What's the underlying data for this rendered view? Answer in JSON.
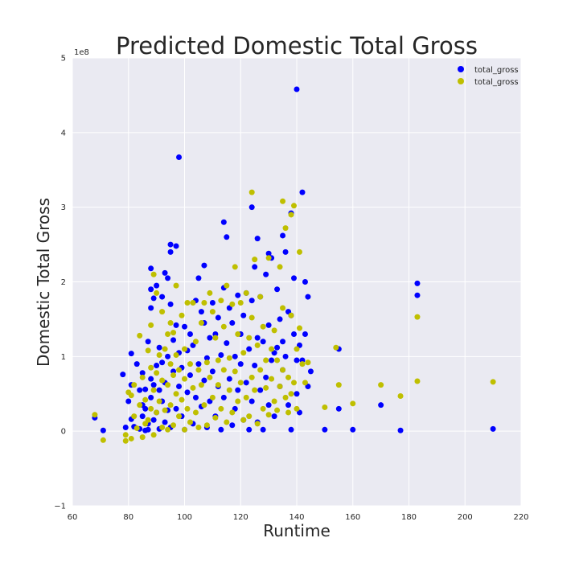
{
  "chart_data": {
    "type": "scatter",
    "title": "Predicted Domestic Total Gross",
    "xlabel": "Runtime",
    "ylabel": "Domestic Total Gross",
    "xlim": [
      60,
      220
    ],
    "ylim": [
      -1,
      5
    ],
    "y_scale_label": "1e8",
    "y_multiplier": 100000000,
    "x_ticks": [
      60,
      80,
      100,
      120,
      140,
      160,
      180,
      200,
      220
    ],
    "y_ticks": [
      -1,
      0,
      1,
      2,
      3,
      4,
      5
    ],
    "x_tick_labels": [
      "60",
      "80",
      "100",
      "120",
      "140",
      "160",
      "180",
      "200",
      "220"
    ],
    "y_tick_labels": [
      "−1",
      "0",
      "1",
      "2",
      "3",
      "4",
      "5"
    ],
    "grid": true,
    "background": "#eaeaf2",
    "legend_position": "top-right",
    "series": [
      {
        "name": "total_gross",
        "color": "#0000ff",
        "points": [
          [
            68,
            0.18
          ],
          [
            71,
            0.01
          ],
          [
            78,
            0.76
          ],
          [
            79,
            0.05
          ],
          [
            80,
            0.4
          ],
          [
            81,
            0.62
          ],
          [
            81,
            1.04
          ],
          [
            81,
            0.16
          ],
          [
            82,
            0.06
          ],
          [
            83,
            0.9
          ],
          [
            84,
            0.03
          ],
          [
            84,
            0.55
          ],
          [
            85,
            0.35
          ],
          [
            85,
            0.78
          ],
          [
            85,
            0.2
          ],
          [
            86,
            0.01
          ],
          [
            86,
            0.56
          ],
          [
            86,
            0.3
          ],
          [
            87,
            0.1
          ],
          [
            87,
            1.2
          ],
          [
            87,
            0.02
          ],
          [
            88,
            0.7
          ],
          [
            88,
            1.9
          ],
          [
            88,
            1.65
          ],
          [
            88,
            2.18
          ],
          [
            88,
            0.45
          ],
          [
            89,
            0.15
          ],
          [
            89,
            1.78
          ],
          [
            89,
            0.62
          ],
          [
            90,
            1.95
          ],
          [
            90,
            0.88
          ],
          [
            90,
            0.25
          ],
          [
            91,
            0.03
          ],
          [
            91,
            1.12
          ],
          [
            91,
            0.55
          ],
          [
            92,
            1.8
          ],
          [
            92,
            0.4
          ],
          [
            92,
            0.92
          ],
          [
            93,
            0.12
          ],
          [
            93,
            2.12
          ],
          [
            93,
            0.65
          ],
          [
            94,
            2.05
          ],
          [
            94,
            1.0
          ],
          [
            94,
            0.28
          ],
          [
            95,
            2.5
          ],
          [
            95,
            2.4
          ],
          [
            95,
            1.7
          ],
          [
            95,
            0.05
          ],
          [
            96,
            1.22
          ],
          [
            96,
            0.8
          ],
          [
            97,
            2.48
          ],
          [
            97,
            0.3
          ],
          [
            97,
            1.42
          ],
          [
            98,
            3.67
          ],
          [
            98,
            1.05
          ],
          [
            98,
            0.6
          ],
          [
            99,
            0.2
          ],
          [
            99,
            0.85
          ],
          [
            100,
            1.4
          ],
          [
            100,
            0.02
          ],
          [
            101,
            1.08
          ],
          [
            101,
            0.52
          ],
          [
            102,
            0.75
          ],
          [
            102,
            1.3
          ],
          [
            103,
            0.1
          ],
          [
            103,
            1.15
          ],
          [
            104,
            1.75
          ],
          [
            104,
            0.45
          ],
          [
            105,
            2.05
          ],
          [
            105,
            0.9
          ],
          [
            106,
            0.33
          ],
          [
            106,
            1.6
          ],
          [
            107,
            2.22
          ],
          [
            107,
            1.45
          ],
          [
            107,
            0.68
          ],
          [
            108,
            0.05
          ],
          [
            108,
            0.98
          ],
          [
            109,
            1.25
          ],
          [
            109,
            0.4
          ],
          [
            110,
            1.72
          ],
          [
            110,
            0.8
          ],
          [
            111,
            1.3
          ],
          [
            111,
            0.2
          ],
          [
            112,
            1.52
          ],
          [
            112,
            0.6
          ],
          [
            113,
            0.02
          ],
          [
            113,
            1.02
          ],
          [
            114,
            2.8
          ],
          [
            114,
            1.92
          ],
          [
            114,
            0.45
          ],
          [
            115,
            2.6
          ],
          [
            115,
            1.18
          ],
          [
            116,
            1.65
          ],
          [
            116,
            0.7
          ],
          [
            117,
            0.08
          ],
          [
            117,
            1.45
          ],
          [
            118,
            1.0
          ],
          [
            118,
            0.3
          ],
          [
            119,
            1.82
          ],
          [
            119,
            0.55
          ],
          [
            120,
            1.3
          ],
          [
            120,
            0.9
          ],
          [
            121,
            0.15
          ],
          [
            121,
            1.55
          ],
          [
            122,
            1.85
          ],
          [
            122,
            0.65
          ],
          [
            123,
            0.02
          ],
          [
            123,
            1.1
          ],
          [
            124,
            3.0
          ],
          [
            124,
            1.75
          ],
          [
            124,
            0.4
          ],
          [
            125,
            2.2
          ],
          [
            125,
            0.88
          ],
          [
            126,
            2.58
          ],
          [
            126,
            1.25
          ],
          [
            126,
            0.12
          ],
          [
            127,
            1.8
          ],
          [
            127,
            0.55
          ],
          [
            128,
            1.2
          ],
          [
            128,
            0.02
          ],
          [
            129,
            2.1
          ],
          [
            129,
            0.72
          ],
          [
            130,
            2.38
          ],
          [
            130,
            1.42
          ],
          [
            130,
            0.35
          ],
          [
            131,
            2.32
          ],
          [
            131,
            0.95
          ],
          [
            132,
            1.05
          ],
          [
            132,
            0.2
          ],
          [
            133,
            1.9
          ],
          [
            133,
            1.12
          ],
          [
            134,
            1.5
          ],
          [
            134,
            0.6
          ],
          [
            135,
            2.62
          ],
          [
            135,
            1.2
          ],
          [
            135,
            0.82
          ],
          [
            136,
            2.4
          ],
          [
            136,
            1.0
          ],
          [
            137,
            1.6
          ],
          [
            137,
            0.35
          ],
          [
            138,
            2.92
          ],
          [
            138,
            1.55
          ],
          [
            138,
            0.02
          ],
          [
            139,
            2.05
          ],
          [
            139,
            1.3
          ],
          [
            140,
            4.58
          ],
          [
            140,
            0.95
          ],
          [
            140,
            0.5
          ],
          [
            141,
            1.15
          ],
          [
            141,
            0.25
          ],
          [
            142,
            3.2
          ],
          [
            142,
            0.95
          ],
          [
            143,
            2.0
          ],
          [
            143,
            1.3
          ],
          [
            144,
            1.8
          ],
          [
            144,
            0.6
          ],
          [
            145,
            0.8
          ],
          [
            150,
            0.02
          ],
          [
            155,
            1.1
          ],
          [
            155,
            0.3
          ],
          [
            160,
            0.02
          ],
          [
            170,
            0.35
          ],
          [
            177,
            0.01
          ],
          [
            183,
            1.98
          ],
          [
            183,
            1.82
          ],
          [
            210,
            0.03
          ]
        ]
      },
      {
        "name": "total_gross",
        "color": "#bfbf00",
        "points": [
          [
            68,
            0.22
          ],
          [
            71,
            -0.12
          ],
          [
            79,
            -0.13
          ],
          [
            79,
            -0.05
          ],
          [
            80,
            0.52
          ],
          [
            81,
            0.48
          ],
          [
            81,
            -0.1
          ],
          [
            82,
            0.2
          ],
          [
            82,
            0.62
          ],
          [
            83,
            0.04
          ],
          [
            84,
            1.28
          ],
          [
            84,
            0.35
          ],
          [
            85,
            -0.08
          ],
          [
            85,
            0.72
          ],
          [
            86,
            0.1
          ],
          [
            86,
            0.42
          ],
          [
            87,
            1.08
          ],
          [
            87,
            0.15
          ],
          [
            88,
            1.42
          ],
          [
            88,
            0.85
          ],
          [
            88,
            0.3
          ],
          [
            89,
            2.1
          ],
          [
            89,
            0.55
          ],
          [
            89,
            -0.05
          ],
          [
            90,
            1.85
          ],
          [
            90,
            0.78
          ],
          [
            90,
            0.25
          ],
          [
            91,
            1.02
          ],
          [
            91,
            0.4
          ],
          [
            92,
            1.6
          ],
          [
            92,
            0.05
          ],
          [
            92,
            0.68
          ],
          [
            93,
            1.1
          ],
          [
            93,
            0.28
          ],
          [
            94,
            1.3
          ],
          [
            94,
            0.62
          ],
          [
            94,
            0.02
          ],
          [
            95,
            0.9
          ],
          [
            95,
            1.45
          ],
          [
            95,
            0.35
          ],
          [
            96,
            1.32
          ],
          [
            96,
            0.08
          ],
          [
            96,
            0.75
          ],
          [
            97,
            1.95
          ],
          [
            97,
            0.5
          ],
          [
            97,
            1.02
          ],
          [
            98,
            0.2
          ],
          [
            98,
            0.82
          ],
          [
            99,
            1.55
          ],
          [
            99,
            0.42
          ],
          [
            100,
            1.1
          ],
          [
            100,
            0.02
          ],
          [
            100,
            0.7
          ],
          [
            101,
            1.72
          ],
          [
            101,
            0.3
          ],
          [
            102,
            0.9
          ],
          [
            102,
            0.12
          ],
          [
            103,
            1.72
          ],
          [
            103,
            0.58
          ],
          [
            104,
            1.2
          ],
          [
            104,
            0.25
          ],
          [
            105,
            0.82
          ],
          [
            105,
            0.05
          ],
          [
            106,
            1.45
          ],
          [
            106,
            0.62
          ],
          [
            107,
            1.72
          ],
          [
            107,
            0.35
          ],
          [
            108,
            0.92
          ],
          [
            108,
            0.08
          ],
          [
            109,
            1.85
          ],
          [
            109,
            0.72
          ],
          [
            110,
            1.6
          ],
          [
            110,
            0.45
          ],
          [
            111,
            1.25
          ],
          [
            111,
            0.18
          ],
          [
            112,
            0.95
          ],
          [
            112,
            0.62
          ],
          [
            113,
            1.75
          ],
          [
            113,
            0.3
          ],
          [
            114,
            1.4
          ],
          [
            114,
            0.82
          ],
          [
            115,
            1.95
          ],
          [
            115,
            0.12
          ],
          [
            116,
            0.98
          ],
          [
            116,
            0.55
          ],
          [
            117,
            1.7
          ],
          [
            117,
            0.25
          ],
          [
            118,
            2.2
          ],
          [
            118,
            0.8
          ],
          [
            119,
            1.3
          ],
          [
            119,
            0.4
          ],
          [
            120,
            1.72
          ],
          [
            120,
            0.65
          ],
          [
            121,
            0.15
          ],
          [
            121,
            1.05
          ],
          [
            122,
            1.85
          ],
          [
            122,
            0.45
          ],
          [
            123,
            1.25
          ],
          [
            123,
            0.2
          ],
          [
            124,
            3.2
          ],
          [
            124,
            1.52
          ],
          [
            124,
            0.72
          ],
          [
            125,
            2.3
          ],
          [
            125,
            0.55
          ],
          [
            126,
            1.15
          ],
          [
            126,
            0.1
          ],
          [
            127,
            1.8
          ],
          [
            127,
            0.82
          ],
          [
            128,
            1.4
          ],
          [
            128,
            0.3
          ],
          [
            129,
            0.95
          ],
          [
            129,
            0.58
          ],
          [
            130,
            2.32
          ],
          [
            130,
            0.22
          ],
          [
            131,
            1.1
          ],
          [
            131,
            0.7
          ],
          [
            132,
            1.35
          ],
          [
            132,
            0.4
          ],
          [
            133,
            0.95
          ],
          [
            133,
            0.28
          ],
          [
            134,
            2.2
          ],
          [
            134,
            0.6
          ],
          [
            135,
            3.08
          ],
          [
            135,
            1.65
          ],
          [
            135,
            0.82
          ],
          [
            136,
            2.72
          ],
          [
            136,
            0.45
          ],
          [
            137,
            0.72
          ],
          [
            137,
            0.25
          ],
          [
            138,
            2.9
          ],
          [
            138,
            1.55
          ],
          [
            138,
            0.5
          ],
          [
            139,
            3.02
          ],
          [
            139,
            0.65
          ],
          [
            140,
            1.1
          ],
          [
            140,
            0.3
          ],
          [
            141,
            2.4
          ],
          [
            141,
            1.38
          ],
          [
            142,
            0.9
          ],
          [
            143,
            0.65
          ],
          [
            144,
            0.92
          ],
          [
            150,
            0.32
          ],
          [
            154,
            1.12
          ],
          [
            155,
            0.62
          ],
          [
            160,
            0.37
          ],
          [
            170,
            0.62
          ],
          [
            177,
            0.47
          ],
          [
            183,
            1.53
          ],
          [
            183,
            0.67
          ],
          [
            210,
            0.66
          ]
        ]
      }
    ]
  }
}
